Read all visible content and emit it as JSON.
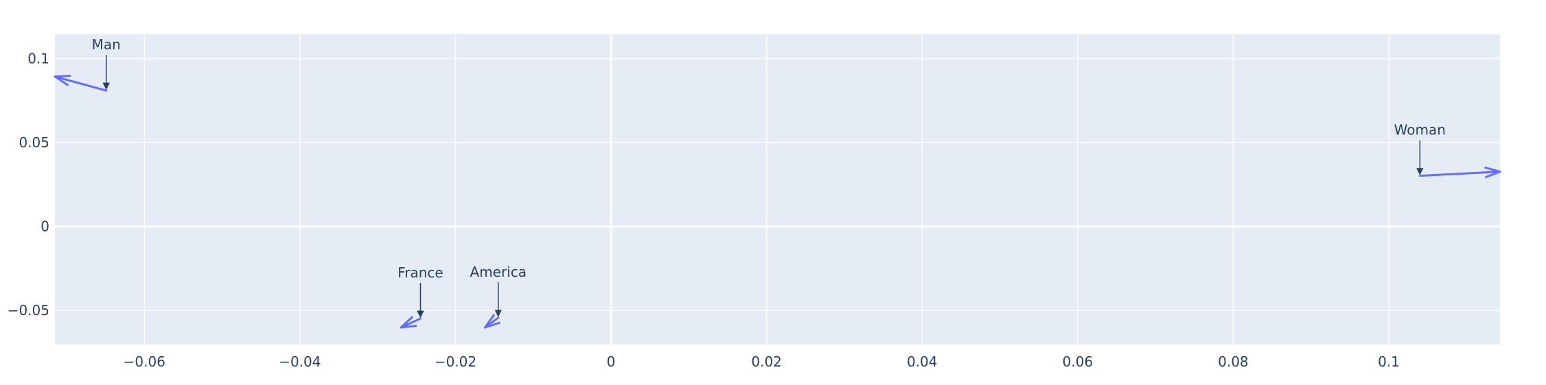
{
  "chart_data": {
    "type": "line",
    "title": "",
    "xlabel": "",
    "ylabel": "",
    "xlim": [
      -0.0715,
      0.1143
    ],
    "ylim": [
      -0.0703,
      0.1145
    ],
    "x_ticks": [
      {
        "value": -0.06,
        "label": "−0.06"
      },
      {
        "value": -0.04,
        "label": "−0.04"
      },
      {
        "value": -0.02,
        "label": "−0.02"
      },
      {
        "value": 0,
        "label": "0"
      },
      {
        "value": 0.02,
        "label": "0.02"
      },
      {
        "value": 0.04,
        "label": "0.04"
      },
      {
        "value": 0.06,
        "label": "0.06"
      },
      {
        "value": 0.08,
        "label": "0.08"
      },
      {
        "value": 0.1,
        "label": "0.1"
      }
    ],
    "y_ticks": [
      {
        "value": 0.1,
        "label": "0.1"
      },
      {
        "value": 0.05,
        "label": "0.05"
      },
      {
        "value": 0,
        "label": "0"
      },
      {
        "value": -0.05,
        "label": "−0.05"
      }
    ],
    "grid": true,
    "legend": "none",
    "series": [
      {
        "word": "Man",
        "x": [
          -0.0649,
          -0.0715
        ],
        "y": [
          0.081,
          0.0893
        ]
      },
      {
        "word": "Woman",
        "x": [
          0.104,
          0.1143
        ],
        "y": [
          0.0302,
          0.0327
        ]
      },
      {
        "word": "France",
        "x": [
          -0.0245,
          -0.027
        ],
        "y": [
          -0.0548,
          -0.0601
        ]
      },
      {
        "word": "America",
        "x": [
          -0.0145,
          -0.0162
        ],
        "y": [
          -0.0543,
          -0.0601
        ]
      }
    ],
    "annotations": [
      {
        "text": "Man",
        "x": -0.0649,
        "y": 0.081
      },
      {
        "text": "Woman",
        "x": 0.104,
        "y": 0.0302
      },
      {
        "text": "France",
        "x": -0.0245,
        "y": -0.0548
      },
      {
        "text": "America",
        "x": -0.0145,
        "y": -0.0543
      }
    ],
    "colors": {
      "series": "#636efa",
      "plot_background": "#e5ecf6",
      "grid": "#ffffff",
      "text": "#2a3f5f",
      "annotation_arrow": "#2a3f5f"
    }
  }
}
